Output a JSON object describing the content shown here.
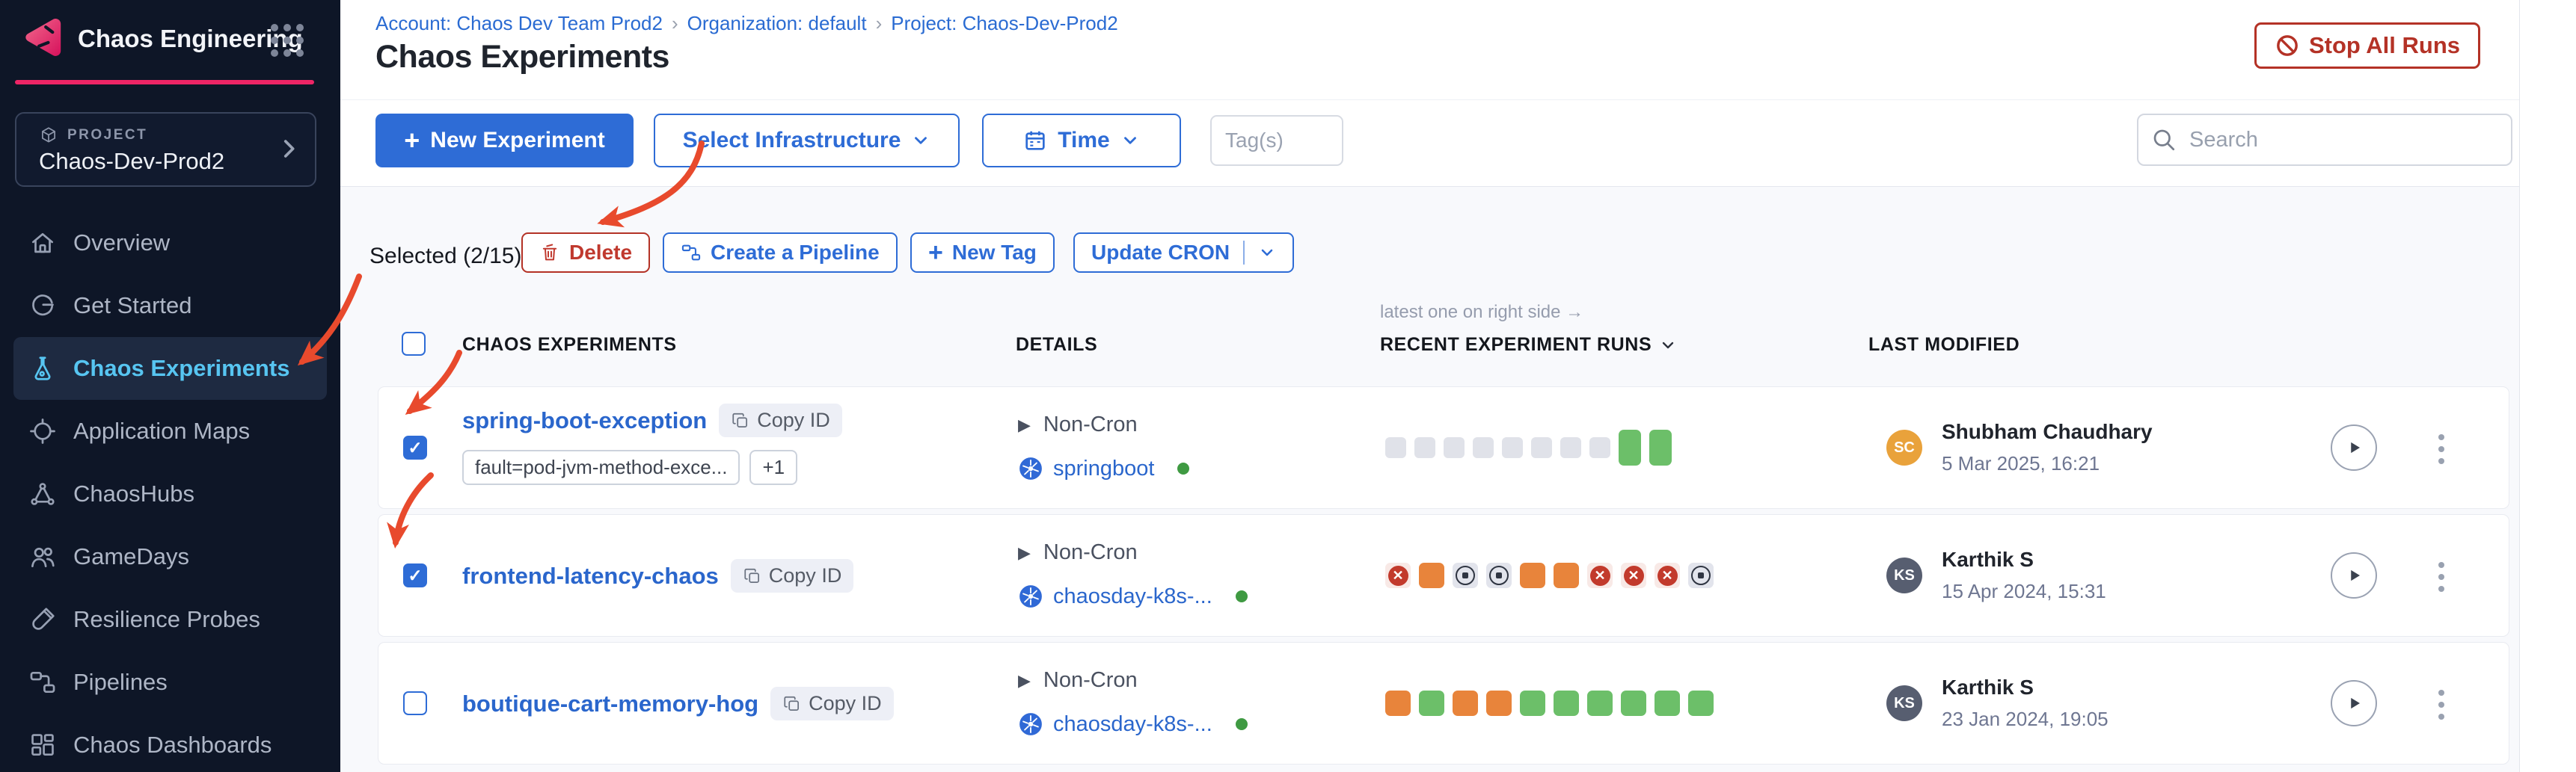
{
  "app": {
    "title": "Chaos Engineering"
  },
  "sidebar": {
    "project_label": "PROJECT",
    "project_name": "Chaos-Dev-Prod2",
    "items": [
      {
        "label": "Overview",
        "icon": "home",
        "active": false
      },
      {
        "label": "Get Started",
        "icon": "getstarted",
        "active": false
      },
      {
        "label": "Chaos Experiments",
        "icon": "flask",
        "active": true
      },
      {
        "label": "Application Maps",
        "icon": "appmaps",
        "active": false
      },
      {
        "label": "ChaosHubs",
        "icon": "hubs",
        "active": false
      },
      {
        "label": "GameDays",
        "icon": "gamedays",
        "active": false
      },
      {
        "label": "Resilience Probes",
        "icon": "probe",
        "active": false
      },
      {
        "label": "Pipelines",
        "icon": "pipeline",
        "active": false
      },
      {
        "label": "Chaos Dashboards",
        "icon": "dashboard",
        "active": false
      }
    ]
  },
  "header": {
    "breadcrumbs": [
      "Account: Chaos Dev Team Prod2",
      "Organization: default",
      "Project: Chaos-Dev-Prod2"
    ],
    "title": "Chaos Experiments",
    "stop_all_runs": "Stop All Runs"
  },
  "toolbar": {
    "new_experiment": "New Experiment",
    "select_infrastructure": "Select Infrastructure",
    "time": "Time",
    "tags_placeholder": "Tag(s)",
    "search_placeholder": "Search"
  },
  "selection": {
    "label": "Selected (2/15)",
    "delete": "Delete",
    "create_pipeline": "Create a Pipeline",
    "new_tag": "New Tag",
    "update_cron": "Update CRON"
  },
  "table": {
    "hint": "latest one on right side →",
    "columns": {
      "experiments": "CHAOS EXPERIMENTS",
      "details": "DETAILS",
      "runs": "RECENT EXPERIMENT RUNS",
      "modified": "LAST MODIFIED"
    },
    "rows": [
      {
        "selected": true,
        "name": "spring-boot-exception",
        "copy_label": "Copy ID",
        "tags": [
          "fault=pod-jvm-method-exce...",
          "+1"
        ],
        "schedule": "Non-Cron",
        "infrastructure": "springboot",
        "runs": [
          "none",
          "none",
          "none",
          "none",
          "none",
          "none",
          "none",
          "none",
          "passed_latest",
          "passed_latest"
        ],
        "modified_by": {
          "initials": "SC",
          "name": "Shubham Chaudhary",
          "date": "5 Mar 2025, 16:21",
          "avatar_color": "#e9a23b"
        }
      },
      {
        "selected": true,
        "name": "frontend-latency-chaos",
        "copy_label": "Copy ID",
        "tags": [],
        "schedule": "Non-Cron",
        "infrastructure": "chaosday-k8s-...",
        "runs": [
          "failed",
          "running",
          "stopped",
          "stopped",
          "running",
          "running",
          "failed",
          "failed",
          "failed",
          "stopped"
        ],
        "modified_by": {
          "initials": "KS",
          "name": "Karthik S",
          "date": "15 Apr 2024, 15:31",
          "avatar_color": "#575e70"
        }
      },
      {
        "selected": false,
        "name": "boutique-cart-memory-hog",
        "copy_label": "Copy ID",
        "tags": [],
        "schedule": "Non-Cron",
        "infrastructure": "chaosday-k8s-...",
        "runs": [
          "running",
          "passed",
          "running",
          "running",
          "passed",
          "passed",
          "passed",
          "passed",
          "passed",
          "passed"
        ],
        "modified_by": {
          "initials": "KS",
          "name": "Karthik S",
          "date": "23 Jan 2024, 19:05",
          "avatar_color": "#575e70"
        }
      }
    ]
  },
  "colors": {
    "accent_blue": "#2e6cd6",
    "link_blue": "#2a66cc",
    "sidebar_active": "#57c5f1",
    "danger_red": "#b43226",
    "annotation": "#e84a2d",
    "run_passed": "#6cbf69",
    "run_running": "#e8843b",
    "run_failed": "#c23a2c",
    "run_stopped_bg": "#e2e4ec",
    "run_none": "#e0e2e9",
    "online_green": "#3f9a42",
    "brand_pink": "#ee2566"
  }
}
